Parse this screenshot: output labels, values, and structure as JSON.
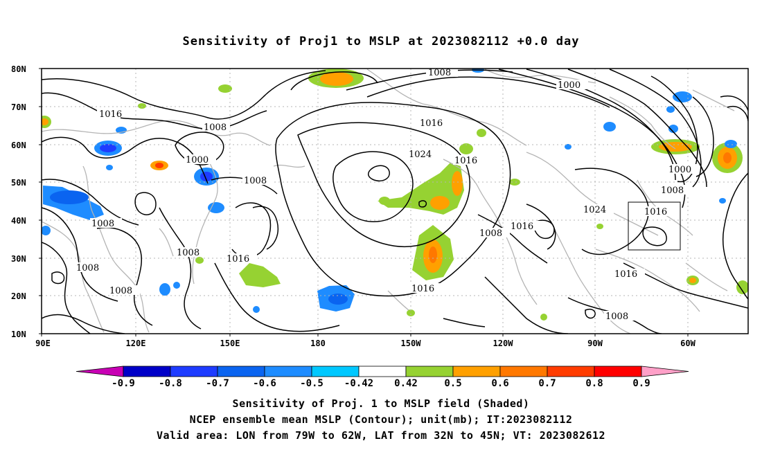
{
  "title": "Sensitivity of Proj1 to MSLP at 2023082112 +0.0 day",
  "axes": {
    "lat_labels": [
      "80N",
      "70N",
      "60N",
      "50N",
      "40N",
      "30N",
      "20N",
      "10N"
    ],
    "lon_labels": [
      "90E",
      "120E",
      "150E",
      "180",
      "150W",
      "120W",
      "90W",
      "60W"
    ]
  },
  "colorbar": {
    "labels": [
      "-0.9",
      "-0.8",
      "-0.7",
      "-0.6",
      "-0.5",
      "-0.42",
      "0.42",
      "0.5",
      "0.6",
      "0.7",
      "0.8",
      "0.9"
    ],
    "colors": [
      "#c800b4",
      "#0000c8",
      "#1e3cff",
      "#0a64f0",
      "#1e8cff",
      "#00c8ff",
      "#ffffff",
      "#96d232",
      "#ffa000",
      "#ff7800",
      "#ff3c00",
      "#ff0000",
      "#ffa0c8"
    ]
  },
  "contour_labels": [
    "1016",
    "1008",
    "1008",
    "1000",
    "1008",
    "1008",
    "1008",
    "1008",
    "1016",
    "1008",
    "1024",
    "1016",
    "1016",
    "1008",
    "1016",
    "1016",
    "1000",
    "1000",
    "1008",
    "1024",
    "1016",
    "1016",
    "1008"
  ],
  "captions": {
    "line1": "Sensitivity of Proj. 1 to MSLP field (Shaded)",
    "line2": "NCEP ensemble mean MSLP (Contour); unit(mb); IT:2023082112",
    "line3": "Valid area: LON from 79W to 62W, LAT from 32N to 45N; VT: 2023082612"
  }
}
